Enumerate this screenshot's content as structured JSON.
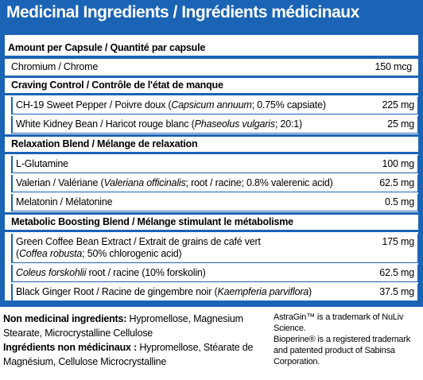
{
  "title": "Medicinal Ingredients / Ingrédients médicinaux",
  "table": {
    "header": "Amount per Capsule / Quantité par capsule",
    "rows": [
      {
        "name": [
          {
            "text": "Chromium / Chrome"
          }
        ],
        "amount": "150 mcg"
      },
      {
        "section": "Craving Control / Contrôle de l'état de manque",
        "items": [
          {
            "name": [
              {
                "text": "CH-19 Sweet Pepper / Poivre doux ("
              },
              {
                "text": "Capsicum annuum",
                "italic": true
              },
              {
                "text": "; 0.75% capsiate)"
              }
            ],
            "amount": "225 mg"
          },
          {
            "name": [
              {
                "text": "White Kidney Bean / Haricot rouge blanc ("
              },
              {
                "text": "Phaseolus vulgaris",
                "italic": true
              },
              {
                "text": "; 20:1)"
              }
            ],
            "amount": "25 mg"
          }
        ]
      },
      {
        "section": "Relaxation Blend / Mélange de relaxation",
        "items": [
          {
            "name": [
              {
                "text": "L-Glutamine"
              }
            ],
            "amount": "100 mg"
          },
          {
            "name": [
              {
                "text": "Valerian / Valériane ("
              },
              {
                "text": "Valeriana officinalis",
                "italic": true
              },
              {
                "text": "; root / racine; 0.8% valerenic acid)"
              }
            ],
            "amount": "62.5 mg"
          },
          {
            "name": [
              {
                "text": "Melatonin / Mélatonine"
              }
            ],
            "amount": "0.5 mg"
          }
        ]
      },
      {
        "section": "Metabolic Boosting Blend / Mélange stimulant le métabolisme",
        "items": [
          {
            "name": [
              {
                "text": "Green Coffee Bean Extract / Extrait de grains de café vert"
              },
              {
                "text": "(",
                "newline": true
              },
              {
                "text": "Coffea robusta",
                "italic": true
              },
              {
                "text": "; 50% chlorogenic acid)"
              }
            ],
            "amount": "175 mg"
          },
          {
            "name": [
              {
                "text": "Coleus forskohlii",
                "italic": true
              },
              {
                "text": " root / racine (10% forskolin)"
              }
            ],
            "amount": "62.5 mg"
          },
          {
            "name": [
              {
                "text": "Black Ginger Root / Racine de gingembre noir ("
              },
              {
                "text": "Kaempferia parviflora",
                "italic": true
              },
              {
                "text": ")"
              }
            ],
            "amount": "37.5 mg"
          }
        ]
      }
    ]
  },
  "non_medicinal": {
    "en_label": "Non medicinal ingredients:",
    "en_text": " Hypromellose, Magnesium Stearate, Microcrystalline Cellulose",
    "fr_label": "Ingrédients non médicinaux :",
    "fr_text": " Hypromellose, Stéarate de Magnésium, Cellulose Microcrystalline"
  },
  "notes": [
    "AstraGin™ is a trademark of NuLiv Science.",
    "Bioperine® is a registered trademark and patented product of Sabinsa Corporation."
  ]
}
